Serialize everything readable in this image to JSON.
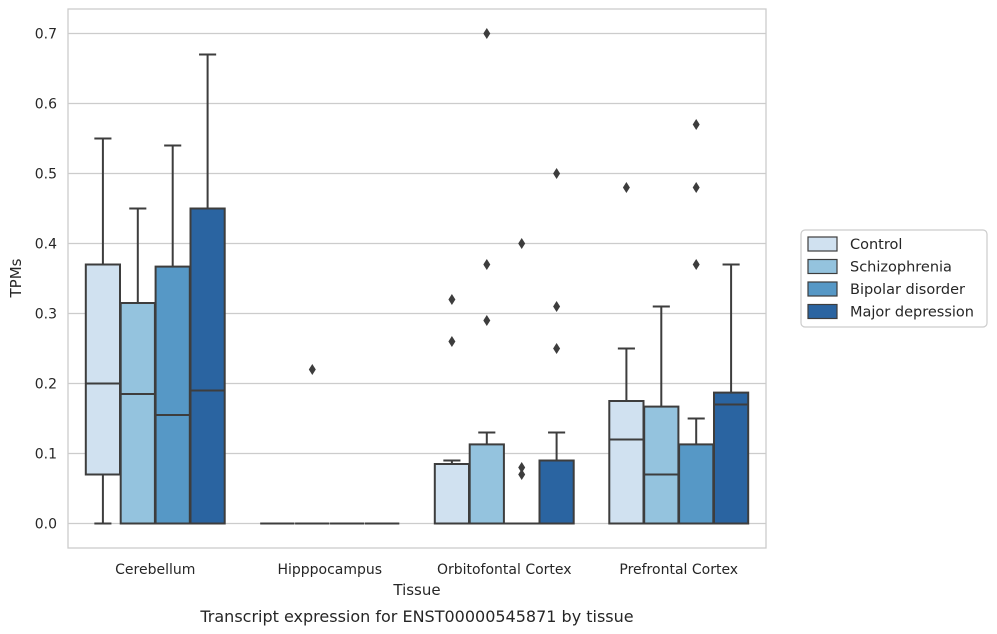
{
  "caption": "Transcript expression for ENST00000545871 by tissue",
  "chart_data": {
    "type": "box",
    "xlabel": "Tissue",
    "ylabel": "TPMs",
    "ylim": [
      -0.035,
      0.735
    ],
    "yticks": [
      0.0,
      0.1,
      0.2,
      0.3,
      0.4,
      0.5,
      0.6,
      0.7
    ],
    "ytick_labels": [
      "0.0",
      "0.1",
      "0.2",
      "0.3",
      "0.4",
      "0.5",
      "0.6",
      "0.7"
    ],
    "grid": true,
    "legend_position": "right",
    "categories": [
      "Cerebellum",
      "Hipppocampus",
      "Orbitofontal Cortex",
      "Prefrontal Cortex"
    ],
    "series": [
      {
        "name": "Control",
        "color": "#d0e1f0",
        "boxes": [
          {
            "whislo": 0.0,
            "q1": 0.07,
            "med": 0.2,
            "q3": 0.37,
            "whishi": 0.55,
            "fliers": []
          },
          {
            "whislo": 0.0,
            "q1": 0.0,
            "med": 0.0,
            "q3": 0.0,
            "whishi": 0.0,
            "fliers": []
          },
          {
            "whislo": 0.0,
            "q1": 0.0,
            "med": 0.0,
            "q3": 0.085,
            "whishi": 0.09,
            "fliers": [
              0.26,
              0.32
            ]
          },
          {
            "whislo": 0.0,
            "q1": 0.0,
            "med": 0.12,
            "q3": 0.175,
            "whishi": 0.25,
            "fliers": [
              0.48
            ]
          }
        ]
      },
      {
        "name": "Schizophrenia",
        "color": "#94c3de",
        "boxes": [
          {
            "whislo": 0.0,
            "q1": 0.0,
            "med": 0.185,
            "q3": 0.315,
            "whishi": 0.45,
            "fliers": []
          },
          {
            "whislo": 0.0,
            "q1": 0.0,
            "med": 0.0,
            "q3": 0.0,
            "whishi": 0.0,
            "fliers": [
              0.22
            ]
          },
          {
            "whislo": 0.0,
            "q1": 0.0,
            "med": 0.0,
            "q3": 0.113,
            "whishi": 0.13,
            "fliers": [
              0.29,
              0.37,
              0.7
            ]
          },
          {
            "whislo": 0.0,
            "q1": 0.0,
            "med": 0.07,
            "q3": 0.167,
            "whishi": 0.31,
            "fliers": []
          }
        ]
      },
      {
        "name": "Bipolar disorder",
        "color": "#5698c6",
        "boxes": [
          {
            "whislo": 0.0,
            "q1": 0.0,
            "med": 0.155,
            "q3": 0.367,
            "whishi": 0.54,
            "fliers": []
          },
          {
            "whislo": 0.0,
            "q1": 0.0,
            "med": 0.0,
            "q3": 0.0,
            "whishi": 0.0,
            "fliers": []
          },
          {
            "whislo": 0.0,
            "q1": 0.0,
            "med": 0.0,
            "q3": 0.0,
            "whishi": 0.0,
            "fliers": [
              0.07,
              0.08,
              0.4
            ]
          },
          {
            "whislo": 0.0,
            "q1": 0.0,
            "med": 0.0,
            "q3": 0.113,
            "whishi": 0.15,
            "fliers": [
              0.37,
              0.48,
              0.57
            ]
          }
        ]
      },
      {
        "name": "Major depression",
        "color": "#2a64a1",
        "boxes": [
          {
            "whislo": 0.0,
            "q1": 0.0,
            "med": 0.19,
            "q3": 0.45,
            "whishi": 0.67,
            "fliers": []
          },
          {
            "whislo": 0.0,
            "q1": 0.0,
            "med": 0.0,
            "q3": 0.0,
            "whishi": 0.0,
            "fliers": []
          },
          {
            "whislo": 0.0,
            "q1": 0.0,
            "med": 0.0,
            "q3": 0.09,
            "whishi": 0.13,
            "fliers": [
              0.25,
              0.31,
              0.5
            ]
          },
          {
            "whislo": 0.0,
            "q1": 0.0,
            "med": 0.17,
            "q3": 0.187,
            "whishi": 0.37,
            "fliers": []
          }
        ]
      }
    ]
  }
}
